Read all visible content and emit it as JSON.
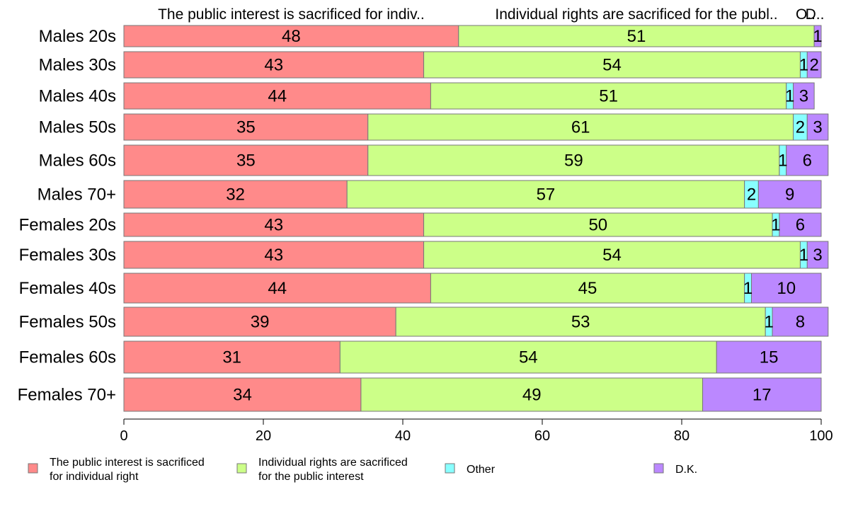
{
  "chart_data": {
    "type": "bar",
    "orientation": "horizontal",
    "stacked": true,
    "categories": [
      "Males 20s",
      "Males 30s",
      "Males 40s",
      "Males 50s",
      "Males 60s",
      "Males 70+",
      "Females 20s",
      "Females 30s",
      "Females 40s",
      "Females 50s",
      "Females 60s",
      "Females 70+"
    ],
    "series": [
      {
        "name": "The public interest is sacrificed for individual right",
        "legend_lines": [
          "The public interest is sacrificed",
          "for individual right"
        ],
        "top_label": "The public interest is sacrificed for indiv..",
        "color": "#ff8a8a",
        "values": [
          48,
          43,
          44,
          35,
          35,
          32,
          43,
          43,
          44,
          39,
          31,
          34
        ]
      },
      {
        "name": "Individual rights are sacrificed for the public interest",
        "legend_lines": [
          "Individual rights are sacrificed",
          "for the public interest"
        ],
        "top_label": "Individual rights are sacrificed for the publ..",
        "color": "#ccff88",
        "values": [
          51,
          54,
          51,
          61,
          59,
          57,
          50,
          54,
          45,
          53,
          54,
          49
        ]
      },
      {
        "name": "Other",
        "legend_lines": [
          "Other"
        ],
        "top_label": "O..",
        "color": "#88ffff",
        "values": [
          0,
          1,
          1,
          2,
          1,
          2,
          1,
          1,
          1,
          1,
          0,
          0
        ]
      },
      {
        "name": "D.K.",
        "legend_lines": [
          "D.K."
        ],
        "top_label": "D..",
        "color": "#bb88ff",
        "values": [
          1,
          2,
          3,
          3,
          6,
          9,
          6,
          3,
          10,
          8,
          15,
          17
        ]
      }
    ],
    "xlim": [
      0,
      100
    ],
    "xticks": [
      0,
      20,
      40,
      60,
      80,
      100
    ],
    "grid": false,
    "legend_position": "bottom"
  }
}
